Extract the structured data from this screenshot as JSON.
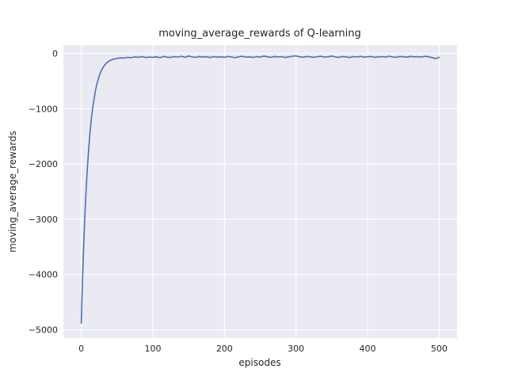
{
  "chart_data": {
    "type": "line",
    "title": "moving_average_rewards of Q-learning",
    "xlabel": "episodes",
    "ylabel": "moving_average_rewards",
    "x_ticks": [
      0,
      100,
      200,
      300,
      400,
      500
    ],
    "y_ticks": [
      0,
      -1000,
      -2000,
      -3000,
      -4000,
      -5000
    ],
    "xlim": [
      -25,
      525
    ],
    "ylim": [
      -5150,
      150
    ],
    "grid": true,
    "legend": "none",
    "colors": {
      "line": "#4c72b0",
      "plot_background": "#eaeaf2",
      "gridline": "#ffffff",
      "figure_background": "#ffffff",
      "text": "#262626"
    },
    "series": [
      {
        "name": "moving_average_rewards",
        "x": [
          0,
          1,
          2,
          3,
          4,
          5,
          6,
          8,
          10,
          12,
          14,
          16,
          18,
          20,
          22,
          25,
          28,
          31,
          35,
          40,
          45,
          50,
          55,
          60,
          65,
          70,
          75,
          80,
          85,
          90,
          95,
          100,
          105,
          110,
          115,
          120,
          125,
          130,
          135,
          140,
          145,
          150,
          155,
          160,
          165,
          170,
          175,
          180,
          185,
          190,
          195,
          200,
          205,
          210,
          215,
          220,
          225,
          230,
          235,
          240,
          245,
          250,
          255,
          260,
          265,
          270,
          275,
          280,
          285,
          290,
          295,
          300,
          305,
          310,
          315,
          320,
          325,
          330,
          335,
          340,
          345,
          350,
          355,
          360,
          365,
          370,
          375,
          380,
          385,
          390,
          395,
          400,
          405,
          410,
          415,
          420,
          425,
          430,
          435,
          440,
          445,
          450,
          455,
          460,
          465,
          470,
          475,
          480,
          485,
          490,
          495,
          500
        ],
        "y": [
          -4880,
          -4420,
          -4000,
          -3620,
          -3270,
          -2960,
          -2680,
          -2190,
          -1800,
          -1470,
          -1200,
          -990,
          -810,
          -660,
          -545,
          -410,
          -310,
          -240,
          -175,
          -130,
          -105,
          -92,
          -80,
          -85,
          -70,
          -78,
          -62,
          -72,
          -58,
          -75,
          -65,
          -70,
          -60,
          -78,
          -55,
          -68,
          -74,
          -58,
          -65,
          -52,
          -70,
          -48,
          -63,
          -72,
          -55,
          -66,
          -60,
          -75,
          -58,
          -68,
          -62,
          -70,
          -55,
          -65,
          -78,
          -60,
          -52,
          -68,
          -62,
          -72,
          -58,
          -66,
          -48,
          -60,
          -70,
          -55,
          -65,
          -58,
          -73,
          -62,
          -50,
          -45,
          -60,
          -68,
          -55,
          -62,
          -70,
          -58,
          -52,
          -66,
          -60,
          -48,
          -64,
          -70,
          -56,
          -62,
          -75,
          -58,
          -65,
          -52,
          -68,
          -60,
          -55,
          -70,
          -62,
          -58,
          -66,
          -50,
          -63,
          -70,
          -55,
          -60,
          -68,
          -54,
          -62,
          -58,
          -66,
          -52,
          -60,
          -75,
          -95,
          -70
        ]
      }
    ]
  }
}
